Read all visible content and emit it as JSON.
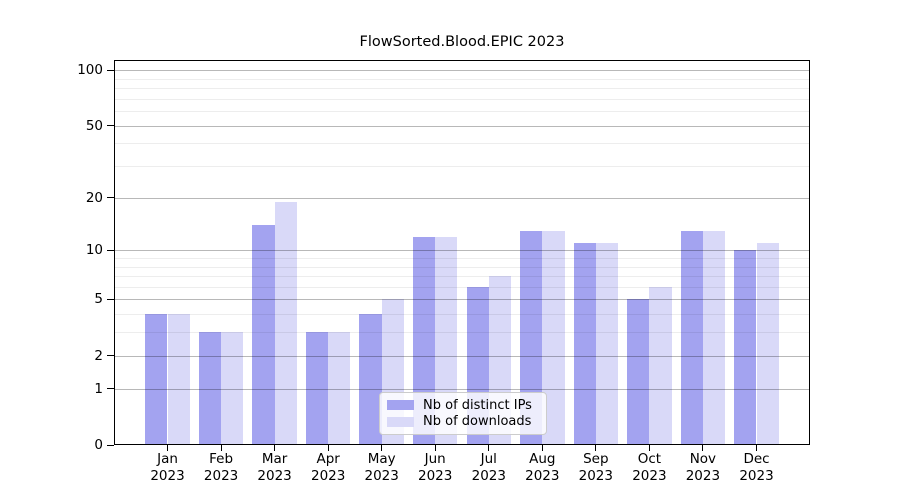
{
  "chart_data": {
    "type": "bar",
    "title": "FlowSorted.Blood.EPIC 2023",
    "year": "2023",
    "months": [
      "Jan",
      "Feb",
      "Mar",
      "Apr",
      "May",
      "Jun",
      "Jul",
      "Aug",
      "Sep",
      "Oct",
      "Nov",
      "Dec"
    ],
    "categories": [
      "Jan 2023",
      "Feb 2023",
      "Mar 2023",
      "Apr 2023",
      "May 2023",
      "Jun 2023",
      "Jul 2023",
      "Aug 2023",
      "Sep 2023",
      "Oct 2023",
      "Nov 2023",
      "Dec 2023"
    ],
    "series": [
      {
        "name": "Nb of distinct IPs",
        "color": "#a3a3f0",
        "values": [
          4,
          3,
          14,
          3,
          4,
          12,
          6,
          13,
          11,
          5,
          13,
          10
        ]
      },
      {
        "name": "Nb of downloads",
        "color": "#d9d9f8",
        "values": [
          4,
          3,
          19,
          3,
          5,
          12,
          7,
          13,
          11,
          6,
          13,
          11
        ]
      }
    ],
    "xlabel": "",
    "ylabel": "",
    "y_axis": {
      "scale": "log1p",
      "major_ticks": [
        0,
        1,
        2,
        5,
        10,
        20,
        50,
        100
      ],
      "minor_gridlines": [
        3,
        4,
        6,
        7,
        8,
        9,
        30,
        40,
        60,
        70,
        80,
        90
      ],
      "range_max": 113
    },
    "legend": {
      "entries": [
        "Nb of distinct IPs",
        "Nb of downloads"
      ],
      "position": "lower-center"
    },
    "grid": "on",
    "colors": {
      "major_grid": "rgba(0,0,0,0.28)",
      "minor_grid": "rgba(0,0,0,0.07)",
      "spine": "#000000",
      "background": "#ffffff"
    }
  }
}
